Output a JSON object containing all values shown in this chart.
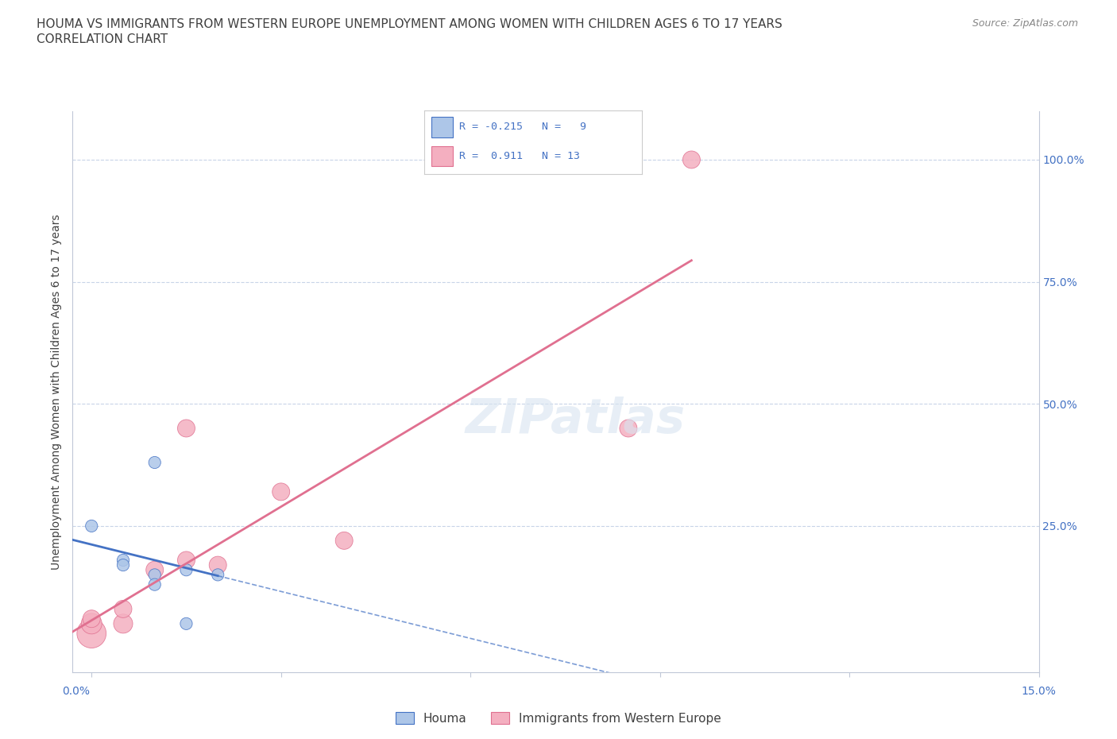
{
  "title_line1": "HOUMA VS IMMIGRANTS FROM WESTERN EUROPE UNEMPLOYMENT AMONG WOMEN WITH CHILDREN AGES 6 TO 17 YEARS",
  "title_line2": "CORRELATION CHART",
  "source": "Source: ZipAtlas.com",
  "ylabel": "Unemployment Among Women with Children Ages 6 to 17 years",
  "watermark": "ZIPatlas",
  "houma_R": -0.215,
  "houma_N": 9,
  "immigrants_R": 0.911,
  "immigrants_N": 13,
  "houma_color": "#adc6e8",
  "immigrants_color": "#f4afc0",
  "houma_line_color": "#4472c4",
  "immigrants_line_color": "#e07090",
  "houma_x": [
    0.0,
    0.5,
    0.5,
    1.0,
    1.0,
    1.5,
    1.5,
    2.0,
    1.0
  ],
  "houma_y": [
    2.5,
    1.8,
    1.7,
    1.5,
    1.3,
    1.6,
    0.5,
    1.5,
    3.8
  ],
  "immigrants_x": [
    0.0,
    0.0,
    0.0,
    0.5,
    0.5,
    1.0,
    1.5,
    1.5,
    2.0,
    3.0,
    4.0,
    8.5,
    9.5
  ],
  "immigrants_y": [
    0.3,
    0.5,
    0.6,
    0.5,
    0.8,
    1.6,
    1.8,
    4.5,
    1.7,
    3.2,
    2.2,
    4.5,
    10.0
  ],
  "houma_bubble_sizes": [
    120,
    120,
    120,
    120,
    120,
    120,
    120,
    120,
    120
  ],
  "immigrants_bubble_sizes": [
    700,
    350,
    250,
    300,
    250,
    250,
    250,
    250,
    250,
    250,
    250,
    250,
    250
  ],
  "xmin": -0.3,
  "xmax": 15.0,
  "ymin": -0.5,
  "ymax": 11.0,
  "ytick_positions": [
    2.5,
    5.0,
    7.5,
    10.0
  ],
  "ytick_labels_right": [
    "25.0%",
    "50.0%",
    "75.0%",
    "100.0%"
  ],
  "background_color": "#ffffff",
  "grid_color": "#c8d4e8",
  "title_color": "#404040",
  "axis_label_color": "#4472c4",
  "source_color": "#888888"
}
